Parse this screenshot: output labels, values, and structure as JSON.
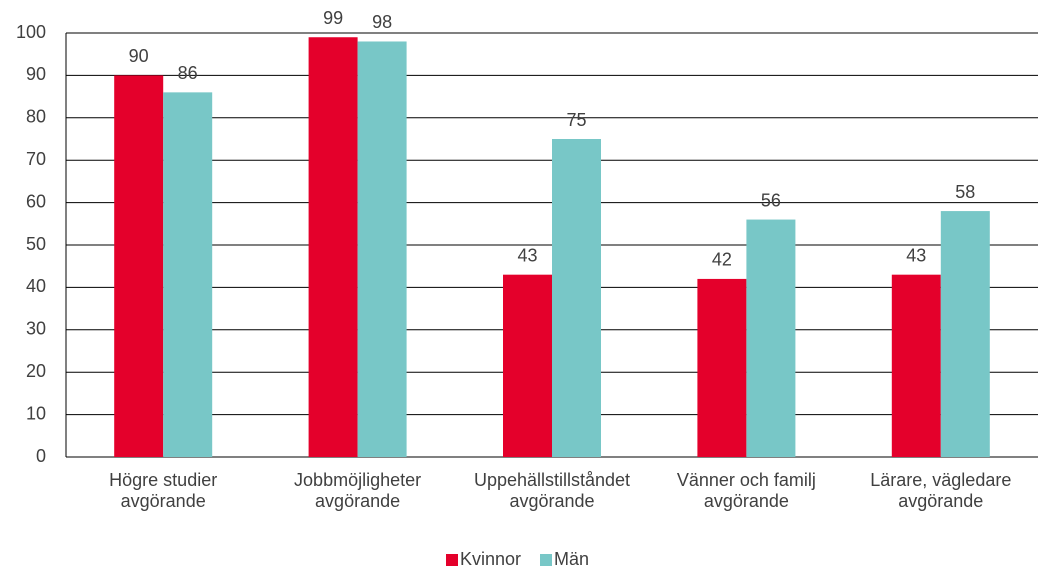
{
  "chart_data": {
    "type": "bar",
    "categories": [
      "Högre studier avgörande",
      "Jobbmöjligheter avgörande",
      "Uppehällstillståndet avgörande",
      "Vänner och familj avgörande",
      "Lärare, vägledare avgörande"
    ],
    "series": [
      {
        "name": "Kvinnor",
        "color": "#e4002b",
        "values": [
          90,
          99,
          43,
          42,
          43
        ]
      },
      {
        "name": "Män",
        "color": "#78c7c7",
        "values": [
          86,
          98,
          75,
          56,
          58
        ]
      }
    ],
    "ylim": [
      0,
      100
    ],
    "yticks": [
      0,
      10,
      20,
      30,
      40,
      50,
      60,
      70,
      80,
      90,
      100
    ],
    "grid": true,
    "legend": "bottom"
  }
}
